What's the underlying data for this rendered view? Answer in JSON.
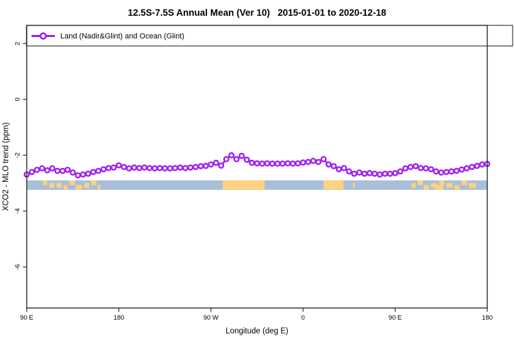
{
  "title": "12.5S-7.5S Annual Mean (Ver 10)   2015-01-01 to 2020-12-18",
  "legend": {
    "label": "Land (Nadir&Glint) and Ocean (Glint)",
    "marker": "open-circle-on-line",
    "color": "#A020F0"
  },
  "colors": {
    "series_purple": "#A020F0",
    "ocean_strip": "#A9BFD9",
    "land_strip": "#FCD17F",
    "axis": "#2b2b2b"
  },
  "chart_data": {
    "type": "line",
    "title": "12.5S-7.5S Annual Mean (Ver 10)   2015-01-01 to 2020-12-18",
    "xlabel": "Longitude (deg E)",
    "ylabel": "XCO2 - MLO trend (ppm)",
    "xlim": [
      90,
      540
    ],
    "ylim": [
      -7.47,
      2.65
    ],
    "x_wrap_note": "x axis is longitude continuing eastward: 90E -> 180 -> 90W -> 0 -> 90E -> 180 (450 degrees total)",
    "grid": false,
    "legend_position": "top-left-boxed",
    "x_ticks": [
      {
        "v": 90,
        "label": "90 E"
      },
      {
        "v": 180,
        "label": "180"
      },
      {
        "v": 270,
        "label": "90 W"
      },
      {
        "v": 360,
        "label": "0"
      },
      {
        "v": 450,
        "label": "90 E"
      },
      {
        "v": 540,
        "label": "180"
      }
    ],
    "y_ticks": [
      {
        "v": 2,
        "label": "2"
      },
      {
        "v": 0,
        "label": "0"
      },
      {
        "v": -2,
        "label": "-2"
      },
      {
        "v": -4,
        "label": "-4"
      },
      {
        "v": -6,
        "label": "-6"
      }
    ],
    "series": [
      {
        "name": "Land (Nadir&Glint) and Ocean (Glint)",
        "color": "#A020F0",
        "marker": "open-circle",
        "x": [
          90,
          95,
          100,
          105,
          110,
          115,
          120,
          125,
          130,
          135,
          140,
          145,
          150,
          155,
          160,
          165,
          170,
          175,
          180,
          185,
          190,
          195,
          200,
          205,
          210,
          215,
          220,
          225,
          230,
          235,
          240,
          245,
          250,
          255,
          260,
          265,
          270,
          275,
          280,
          285,
          290,
          295,
          300,
          305,
          310,
          315,
          320,
          325,
          330,
          335,
          340,
          345,
          350,
          355,
          360,
          365,
          370,
          375,
          380,
          385,
          390,
          395,
          400,
          405,
          410,
          415,
          420,
          425,
          430,
          435,
          440,
          445,
          450,
          455,
          460,
          465,
          470,
          475,
          480,
          485,
          490,
          495,
          500,
          505,
          510,
          515,
          520,
          525,
          530,
          535,
          540
        ],
        "y": [
          -2.69,
          -2.6,
          -2.52,
          -2.47,
          -2.54,
          -2.47,
          -2.56,
          -2.56,
          -2.52,
          -2.62,
          -2.72,
          -2.69,
          -2.66,
          -2.6,
          -2.56,
          -2.5,
          -2.46,
          -2.44,
          -2.36,
          -2.42,
          -2.47,
          -2.44,
          -2.46,
          -2.44,
          -2.46,
          -2.47,
          -2.46,
          -2.47,
          -2.47,
          -2.46,
          -2.44,
          -2.46,
          -2.44,
          -2.42,
          -2.39,
          -2.38,
          -2.33,
          -2.27,
          -2.37,
          -2.14,
          -2.0,
          -2.14,
          -2.02,
          -2.16,
          -2.27,
          -2.29,
          -2.3,
          -2.29,
          -2.3,
          -2.3,
          -2.3,
          -2.29,
          -2.3,
          -2.29,
          -2.26,
          -2.24,
          -2.2,
          -2.24,
          -2.14,
          -2.33,
          -2.39,
          -2.5,
          -2.46,
          -2.58,
          -2.66,
          -2.62,
          -2.66,
          -2.64,
          -2.66,
          -2.69,
          -2.66,
          -2.66,
          -2.64,
          -2.58,
          -2.47,
          -2.42,
          -2.39,
          -2.46,
          -2.47,
          -2.5,
          -2.58,
          -2.62,
          -2.6,
          -2.58,
          -2.56,
          -2.51,
          -2.47,
          -2.42,
          -2.38,
          -2.33,
          -2.31
        ]
      }
    ],
    "map_strip": {
      "description": "land/ocean mask band drawn across plot near y=-3",
      "y_value_range": [
        -2.9,
        -3.24
      ],
      "ocean_color": "#A9BFD9",
      "land_color": "#FCD17F",
      "ocean_extent": [
        90,
        540
      ],
      "land_segments": [
        {
          "from": 106,
          "to": 110,
          "band": "top"
        },
        {
          "from": 112,
          "to": 117,
          "band": "mid"
        },
        {
          "from": 119,
          "to": 124,
          "band": "mid"
        },
        {
          "from": 126,
          "to": 130,
          "band": "bot"
        },
        {
          "from": 132,
          "to": 137,
          "band": "top"
        },
        {
          "from": 138,
          "to": 144,
          "band": "bot"
        },
        {
          "from": 146,
          "to": 151,
          "band": "mid"
        },
        {
          "from": 153,
          "to": 158,
          "band": "top"
        },
        {
          "from": 159,
          "to": 162,
          "band": "bot"
        },
        {
          "from": 281.5,
          "to": 322.5,
          "band": "full"
        },
        {
          "from": 380,
          "to": 399.5,
          "band": "full"
        },
        {
          "from": 408.5,
          "to": 410.5,
          "band": "mid"
        },
        {
          "from": 466,
          "to": 470,
          "band": "mid"
        },
        {
          "from": 472,
          "to": 477,
          "band": "top"
        },
        {
          "from": 478,
          "to": 483,
          "band": "bot"
        },
        {
          "from": 485,
          "to": 491,
          "band": "mid"
        },
        {
          "from": 489,
          "to": 497,
          "band": "bot"
        },
        {
          "from": 493,
          "to": 498,
          "band": "top"
        },
        {
          "from": 500,
          "to": 506,
          "band": "mid"
        },
        {
          "from": 508,
          "to": 513,
          "band": "bot"
        },
        {
          "from": 515,
          "to": 520,
          "band": "top"
        },
        {
          "from": 522,
          "to": 529,
          "band": "mid"
        }
      ]
    }
  }
}
